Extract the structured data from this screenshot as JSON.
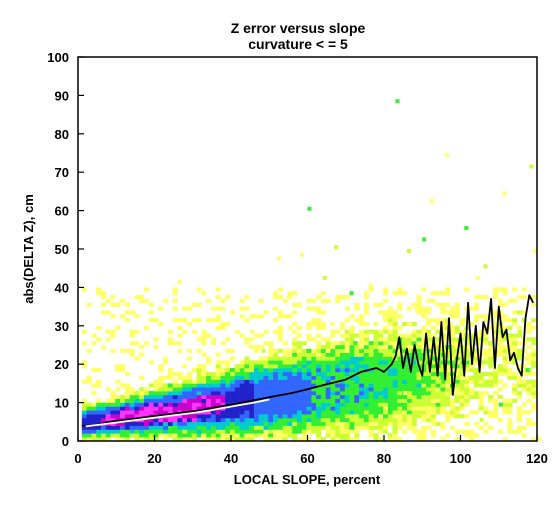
{
  "chart_data": {
    "type": "heatmap",
    "title": "Z error versus slope",
    "subtitle": "curvature < = 5",
    "xlabel": "LOCAL SLOPE, percent",
    "ylabel": "abs(DELTA Z), cm",
    "xlim": [
      0,
      120
    ],
    "ylim": [
      0,
      100
    ],
    "x_ticks": [
      0,
      20,
      40,
      60,
      80,
      100,
      120
    ],
    "y_ticks": [
      0,
      10,
      20,
      30,
      40,
      50,
      60,
      70,
      80,
      90,
      100
    ],
    "grid": false,
    "legend": "none",
    "density_colors": [
      "#ffff66",
      "#ccff33",
      "#33ee33",
      "#00cccc",
      "#3366ff",
      "#2222cc",
      "#cc00cc",
      "#ff33ff"
    ],
    "series": [
      {
        "style": "black-line",
        "color": "#000000",
        "x": [
          1,
          4,
          8,
          12,
          16,
          20,
          24,
          28,
          32,
          36,
          40,
          44,
          48,
          52,
          56,
          58,
          60,
          62,
          64,
          66,
          68,
          70,
          72,
          74,
          76,
          78,
          80,
          82,
          83,
          84,
          85,
          86,
          87,
          88,
          89,
          90,
          91,
          92,
          93,
          94,
          95,
          96,
          97,
          98,
          99,
          100,
          101,
          102,
          103,
          104,
          105,
          106,
          107,
          108,
          109,
          110,
          111,
          112,
          113,
          114,
          115,
          116,
          117,
          118,
          119
        ],
        "y": [
          4,
          4,
          5,
          5.5,
          6,
          6.5,
          7,
          7.5,
          8,
          8.8,
          9.5,
          10.2,
          11,
          11.8,
          12.5,
          13,
          13.5,
          14,
          14.5,
          15,
          15.5,
          16,
          17,
          18,
          18.5,
          19,
          18,
          20,
          22,
          27,
          19,
          24,
          18,
          25,
          20,
          17,
          28,
          18,
          27,
          17,
          31,
          16,
          32,
          12,
          21,
          28,
          17,
          36,
          20,
          30,
          18,
          31,
          28,
          37,
          19,
          35,
          27,
          29,
          21,
          23,
          19,
          17,
          32,
          38,
          36
        ]
      },
      {
        "style": "white-line",
        "color": "#ffffff",
        "x": [
          2,
          6,
          10,
          14,
          18,
          22,
          26,
          30,
          34,
          38,
          42,
          46,
          50
        ],
        "y": [
          3.8,
          4.3,
          4.8,
          5.3,
          5.8,
          6.3,
          6.8,
          7.3,
          7.9,
          8.6,
          9.3,
          10,
          10.8
        ]
      }
    ]
  }
}
